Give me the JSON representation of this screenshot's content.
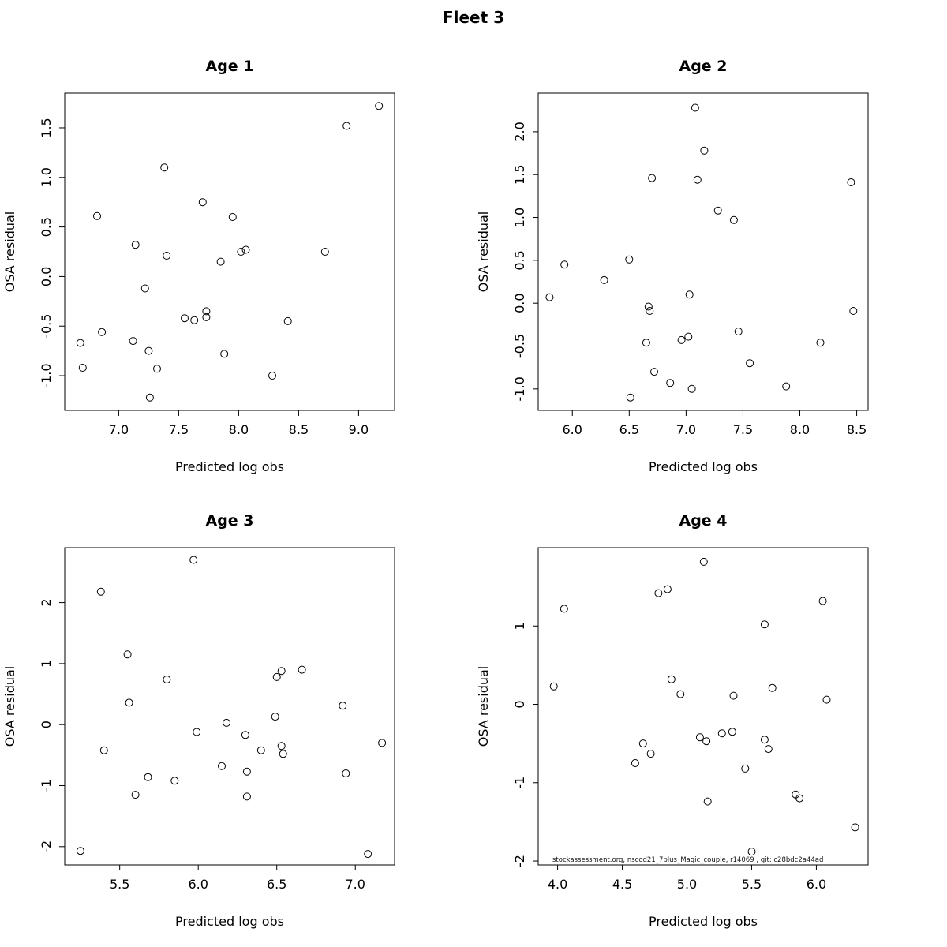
{
  "title": "Fleet 3",
  "watermark": "stockassessment.org, nscod21_7plus_Magic_couple, r14069 , git: c28bdc2a44ad",
  "chart_data": [
    {
      "type": "scatter",
      "title": "Age 1",
      "xlabel": "Predicted log obs",
      "ylabel": "OSA residual",
      "xlim": [
        6.55,
        9.3
      ],
      "ylim": [
        -1.35,
        1.85
      ],
      "grid": false,
      "xtick_values": [
        7.0,
        7.5,
        8.0,
        8.5,
        9.0
      ],
      "xtick_labels": [
        "7.0",
        "7.5",
        "8.0",
        "8.5",
        "9.0"
      ],
      "ytick_values": [
        -1.0,
        -0.5,
        0.0,
        0.5,
        1.0,
        1.5
      ],
      "ytick_labels": [
        "-1.0",
        "-0.5",
        "0.0",
        "0.5",
        "1.0",
        "1.5"
      ],
      "points": [
        [
          6.68,
          -0.67
        ],
        [
          6.7,
          -0.92
        ],
        [
          6.82,
          0.61
        ],
        [
          6.86,
          -0.56
        ],
        [
          7.14,
          0.32
        ],
        [
          7.12,
          -0.65
        ],
        [
          7.22,
          -0.12
        ],
        [
          7.25,
          -0.75
        ],
        [
          7.26,
          -1.22
        ],
        [
          7.32,
          -0.93
        ],
        [
          7.38,
          1.1
        ],
        [
          7.4,
          0.21
        ],
        [
          7.55,
          -0.42
        ],
        [
          7.63,
          -0.44
        ],
        [
          7.7,
          0.75
        ],
        [
          7.73,
          -0.35
        ],
        [
          7.73,
          -0.41
        ],
        [
          7.85,
          0.15
        ],
        [
          7.88,
          -0.78
        ],
        [
          7.95,
          0.6
        ],
        [
          8.02,
          0.25
        ],
        [
          8.06,
          0.27
        ],
        [
          8.28,
          -1.0
        ],
        [
          8.41,
          -0.45
        ],
        [
          8.72,
          0.25
        ],
        [
          8.9,
          1.52
        ],
        [
          9.17,
          1.72
        ]
      ]
    },
    {
      "type": "scatter",
      "title": "Age 2",
      "xlabel": "Predicted log obs",
      "ylabel": "OSA residual",
      "xlim": [
        5.7,
        8.6
      ],
      "ylim": [
        -1.25,
        2.45
      ],
      "grid": false,
      "xtick_values": [
        6.0,
        6.5,
        7.0,
        7.5,
        8.0,
        8.5
      ],
      "xtick_labels": [
        "6.0",
        "6.5",
        "7.0",
        "7.5",
        "8.0",
        "8.5"
      ],
      "ytick_values": [
        -1.0,
        -0.5,
        0.0,
        0.5,
        1.0,
        1.5,
        2.0
      ],
      "ytick_labels": [
        "-1.0",
        "-0.5",
        "0.0",
        "0.5",
        "1.0",
        "1.5",
        "2.0"
      ],
      "points": [
        [
          5.8,
          0.07
        ],
        [
          5.93,
          0.45
        ],
        [
          6.28,
          0.27
        ],
        [
          6.5,
          0.51
        ],
        [
          6.51,
          -1.1
        ],
        [
          6.65,
          -0.46
        ],
        [
          6.67,
          -0.04
        ],
        [
          6.68,
          -0.09
        ],
        [
          6.7,
          1.46
        ],
        [
          6.72,
          -0.8
        ],
        [
          6.86,
          -0.93
        ],
        [
          6.96,
          -0.43
        ],
        [
          7.02,
          -0.39
        ],
        [
          7.03,
          0.1
        ],
        [
          7.05,
          -1.0
        ],
        [
          7.08,
          2.28
        ],
        [
          7.1,
          1.44
        ],
        [
          7.16,
          1.78
        ],
        [
          7.28,
          1.08
        ],
        [
          7.42,
          0.97
        ],
        [
          7.46,
          -0.33
        ],
        [
          7.56,
          -0.7
        ],
        [
          7.88,
          -0.97
        ],
        [
          8.18,
          -0.46
        ],
        [
          8.45,
          1.41
        ],
        [
          8.47,
          -0.09
        ]
      ]
    },
    {
      "type": "scatter",
      "title": "Age 3",
      "xlabel": "Predicted log obs",
      "ylabel": "OSA residual",
      "xlim": [
        5.15,
        7.25
      ],
      "ylim": [
        -2.3,
        2.9
      ],
      "grid": false,
      "xtick_values": [
        5.5,
        6.0,
        6.5,
        7.0
      ],
      "xtick_labels": [
        "5.5",
        "6.0",
        "6.5",
        "7.0"
      ],
      "ytick_values": [
        -2,
        -1,
        0,
        1,
        2
      ],
      "ytick_labels": [
        "-2",
        "-1",
        "0",
        "1",
        "2"
      ],
      "points": [
        [
          5.25,
          -2.07
        ],
        [
          5.38,
          2.18
        ],
        [
          5.4,
          -0.42
        ],
        [
          5.55,
          1.15
        ],
        [
          5.56,
          0.36
        ],
        [
          5.6,
          -1.15
        ],
        [
          5.68,
          -0.86
        ],
        [
          5.8,
          0.74
        ],
        [
          5.85,
          -0.92
        ],
        [
          5.97,
          2.7
        ],
        [
          5.99,
          -0.12
        ],
        [
          6.15,
          -0.68
        ],
        [
          6.18,
          0.03
        ],
        [
          6.3,
          -0.17
        ],
        [
          6.31,
          -0.77
        ],
        [
          6.31,
          -1.18
        ],
        [
          6.4,
          -0.42
        ],
        [
          6.49,
          0.13
        ],
        [
          6.5,
          0.78
        ],
        [
          6.53,
          0.88
        ],
        [
          6.53,
          -0.35
        ],
        [
          6.54,
          -0.48
        ],
        [
          6.66,
          0.9
        ],
        [
          6.92,
          0.31
        ],
        [
          6.94,
          -0.8
        ],
        [
          7.08,
          -2.12
        ],
        [
          7.17,
          -0.3
        ]
      ]
    },
    {
      "type": "scatter",
      "title": "Age 4",
      "xlabel": "Predicted log obs",
      "ylabel": "OSA residual",
      "xlim": [
        3.85,
        6.4
      ],
      "ylim": [
        -2.05,
        2.0
      ],
      "grid": false,
      "xtick_values": [
        4.0,
        4.5,
        5.0,
        5.5,
        6.0
      ],
      "xtick_labels": [
        "4.0",
        "4.5",
        "5.0",
        "5.5",
        "6.0"
      ],
      "ytick_values": [
        -2,
        -1,
        0,
        1
      ],
      "ytick_labels": [
        "-2",
        "-1",
        "0",
        "1"
      ],
      "annotation": "stockassessment.org, nscod21_7plus_Magic_couple, r14069 , git: c28bdc2a44ad",
      "points": [
        [
          3.97,
          0.23
        ],
        [
          4.05,
          1.22
        ],
        [
          4.6,
          -0.75
        ],
        [
          4.66,
          -0.5
        ],
        [
          4.72,
          -0.63
        ],
        [
          4.78,
          1.42
        ],
        [
          4.85,
          1.47
        ],
        [
          4.88,
          0.32
        ],
        [
          4.95,
          0.13
        ],
        [
          5.1,
          -0.42
        ],
        [
          5.13,
          1.82
        ],
        [
          5.15,
          -0.47
        ],
        [
          5.16,
          -1.24
        ],
        [
          5.27,
          -0.37
        ],
        [
          5.35,
          -0.35
        ],
        [
          5.36,
          0.11
        ],
        [
          5.45,
          -0.82
        ],
        [
          5.5,
          -1.88
        ],
        [
          5.6,
          1.02
        ],
        [
          5.6,
          -0.45
        ],
        [
          5.63,
          -0.57
        ],
        [
          5.66,
          0.21
        ],
        [
          5.84,
          -1.15
        ],
        [
          5.87,
          -1.2
        ],
        [
          6.05,
          1.32
        ],
        [
          6.08,
          0.06
        ],
        [
          6.3,
          -1.57
        ]
      ]
    }
  ]
}
